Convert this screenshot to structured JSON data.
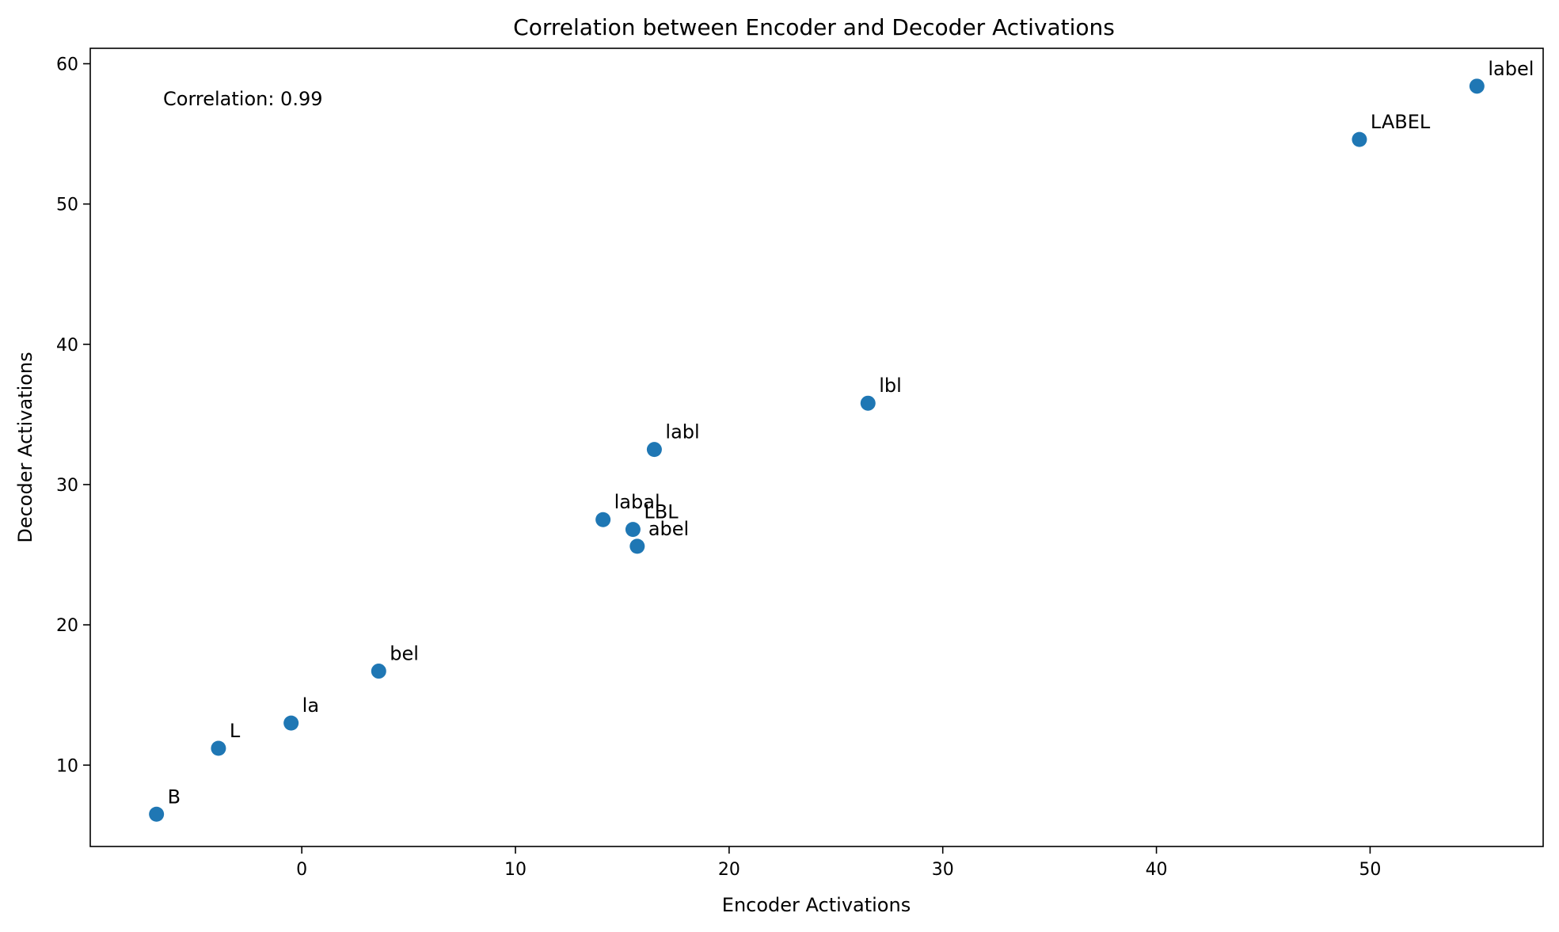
{
  "chart_data": {
    "type": "scatter",
    "title": "Correlation between Encoder and Decoder Activations",
    "xlabel": "Encoder Activations",
    "ylabel": "Decoder Activations",
    "xlim": [
      -9.9,
      58.1
    ],
    "ylim": [
      4.2,
      61.1
    ],
    "xticks": [
      0,
      10,
      20,
      30,
      40,
      50
    ],
    "yticks": [
      10,
      20,
      30,
      40,
      50,
      60
    ],
    "grid": false,
    "annotation": "Correlation: 0.99",
    "point_color": "#1f77b4",
    "points": [
      {
        "label": "label",
        "x": 55.0,
        "y": 58.4
      },
      {
        "label": "LABEL",
        "x": 49.5,
        "y": 54.6
      },
      {
        "label": "lbl",
        "x": 26.5,
        "y": 35.8
      },
      {
        "label": "labl",
        "x": 16.5,
        "y": 32.5
      },
      {
        "label": "labal",
        "x": 14.1,
        "y": 27.5
      },
      {
        "label": "LBL",
        "x": 15.5,
        "y": 26.8
      },
      {
        "label": "abel",
        "x": 15.7,
        "y": 25.6
      },
      {
        "label": "bel",
        "x": 3.6,
        "y": 16.7
      },
      {
        "label": "la",
        "x": -0.5,
        "y": 13.0
      },
      {
        "label": "L",
        "x": -3.9,
        "y": 11.2
      },
      {
        "label": "B",
        "x": -6.8,
        "y": 6.5
      }
    ]
  }
}
